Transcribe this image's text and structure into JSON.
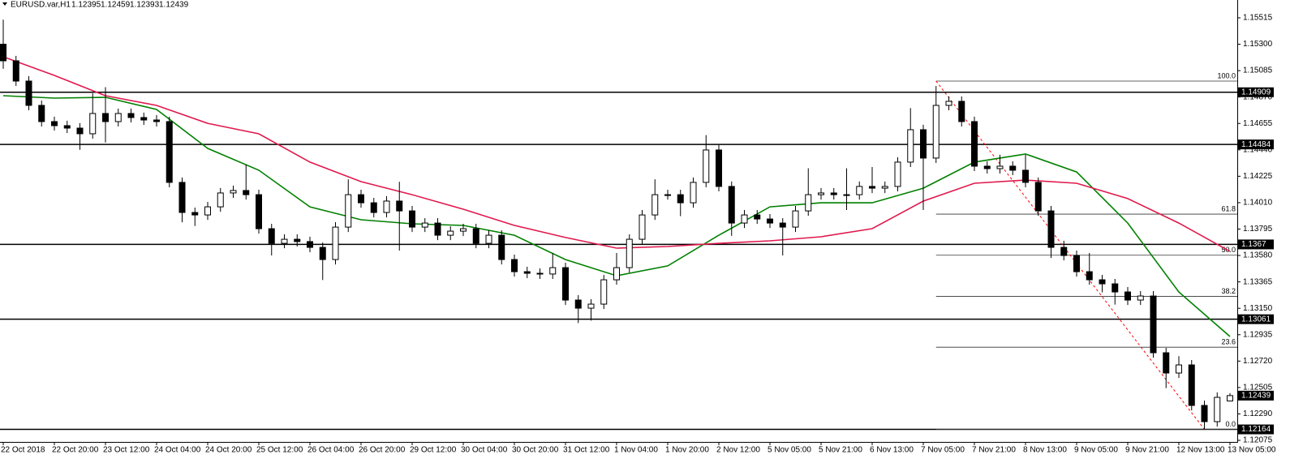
{
  "chart_data": {
    "type": "candlestick",
    "symbol": "EURUSD.var,H1",
    "ohlc": [
      1.12395,
      1.12459,
      1.12393,
      1.12439
    ],
    "categories": [
      "22 Oct 2018",
      null,
      null,
      null,
      "22 Oct 20:00",
      null,
      null,
      null,
      "23 Oct 12:00",
      null,
      null,
      null,
      "24 Oct 04:00",
      null,
      null,
      null,
      "24 Oct 20:00",
      null,
      null,
      null,
      "25 Oct 12:00",
      null,
      null,
      null,
      "26 Oct 04:00",
      null,
      null,
      null,
      "26 Oct 20:00",
      null,
      null,
      null,
      "29 Oct 12:00",
      null,
      null,
      null,
      "30 Oct 04:00",
      null,
      null,
      null,
      "30 Oct 20:00",
      null,
      null,
      null,
      "31 Oct 12:00",
      null,
      null,
      null,
      "1 Nov 04:00",
      null,
      null,
      null,
      "1 Nov 20:00",
      null,
      null,
      null,
      "2 Nov 12:00",
      null,
      null,
      null,
      "5 Nov 05:00",
      null,
      null,
      null,
      "5 Nov 21:00",
      null,
      null,
      null,
      "6 Nov 13:00",
      null,
      null,
      null,
      "7 Nov 05:00",
      null,
      null,
      null,
      "7 Nov 21:00",
      null,
      null,
      null,
      "8 Nov 13:00",
      null,
      null,
      null,
      "9 Nov 05:00",
      null,
      null,
      null,
      "9 Nov 21:00",
      null,
      null,
      null,
      "12 Nov 13:00",
      null,
      null,
      null,
      "13 Nov 05:00"
    ],
    "candles": {
      "open": [
        1.153,
        1.15165,
        1.15,
        1.14802,
        1.1467,
        1.14637,
        1.14617,
        1.14571,
        1.14736,
        1.1467,
        1.14736,
        1.14703,
        1.14683,
        1.1467,
        1.14175,
        1.1393,
        1.1391,
        1.13976,
        1.14089,
        1.14109,
        1.14075,
        1.13798,
        1.13679,
        1.13712,
        1.13693,
        1.13646,
        1.13547,
        1.13811,
        1.14075,
        1.14009,
        1.1393,
        1.14023,
        1.13943,
        1.13811,
        1.13844,
        1.13745,
        1.13778,
        1.13798,
        1.13679,
        1.13745,
        1.13547,
        1.13448,
        1.13435,
        1.13429,
        1.13481,
        1.13217,
        1.13151,
        1.13184,
        1.13382,
        1.13481,
        1.13712,
        1.1391,
        1.14075,
        1.14075,
        1.14009,
        1.14175,
        1.14439,
        1.14142,
        1.13844,
        1.1391,
        1.13877,
        1.13844,
        1.13811,
        1.13943,
        1.14075,
        1.14089,
        1.14075,
        1.14075,
        1.14142,
        1.14128,
        1.14142,
        1.1434,
        1.14604,
        1.14373,
        1.14802,
        1.14835,
        1.1467,
        1.14307,
        1.14287,
        1.14307,
        1.14274,
        1.14175,
        1.13943,
        1.13646,
        1.1358,
        1.13448,
        1.13382,
        1.13349,
        1.13283,
        1.13217,
        1.1325,
        1.12788,
        1.12623,
        1.12689,
        1.12359,
        1.12227,
        1.12395
      ],
      "high": [
        1.155,
        1.15205,
        1.1504,
        1.14842,
        1.1471,
        1.14677,
        1.14657,
        1.149,
        1.1495,
        1.14776,
        1.14776,
        1.14743,
        1.14723,
        1.1471,
        1.14215,
        1.1397,
        1.14016,
        1.14129,
        1.14149,
        1.1432,
        1.14115,
        1.13838,
        1.13752,
        1.13752,
        1.13733,
        1.13686,
        1.13851,
        1.142,
        1.14115,
        1.14049,
        1.14063,
        1.1418,
        1.13983,
        1.13884,
        1.13884,
        1.13818,
        1.13838,
        1.13838,
        1.13785,
        1.13785,
        1.13587,
        1.13488,
        1.13475,
        1.136,
        1.13521,
        1.13257,
        1.13224,
        1.13422,
        1.136,
        1.13752,
        1.1395,
        1.142,
        1.14115,
        1.14115,
        1.14215,
        1.1456,
        1.14479,
        1.14182,
        1.1395,
        1.1395,
        1.13917,
        1.13884,
        1.13983,
        1.1429,
        1.14129,
        1.14129,
        1.1429,
        1.14182,
        1.143,
        1.14182,
        1.1438,
        1.1478,
        1.14644,
        1.1496,
        1.14875,
        1.14875,
        1.1471,
        1.14347,
        1.144,
        1.14347,
        1.144,
        1.14215,
        1.13983,
        1.137,
        1.1362,
        1.136,
        1.13422,
        1.13389,
        1.13323,
        1.1329,
        1.1329,
        1.12828,
        1.1276,
        1.12729,
        1.12399,
        1.12465,
        1.12459
      ],
      "low": [
        1.151,
        1.1496,
        1.14762,
        1.1463,
        1.14597,
        1.14577,
        1.1444,
        1.14531,
        1.145,
        1.1463,
        1.14663,
        1.14643,
        1.1463,
        1.14135,
        1.1385,
        1.1382,
        1.1387,
        1.13936,
        1.14049,
        1.14035,
        1.13758,
        1.1358,
        1.13639,
        1.13653,
        1.13606,
        1.1338,
        1.13507,
        1.13771,
        1.13969,
        1.1389,
        1.1389,
        1.1362,
        1.13771,
        1.13771,
        1.13705,
        1.13705,
        1.13738,
        1.13639,
        1.13639,
        1.13507,
        1.13408,
        1.13395,
        1.13389,
        1.13389,
        1.13177,
        1.1303,
        1.1305,
        1.13144,
        1.13342,
        1.13441,
        1.13672,
        1.1387,
        1.14035,
        1.139,
        1.13969,
        1.14135,
        1.14102,
        1.1374,
        1.13804,
        1.13837,
        1.13804,
        1.1358,
        1.13771,
        1.13903,
        1.14035,
        1.14035,
        1.1395,
        1.14035,
        1.14088,
        1.14088,
        1.14102,
        1.143,
        1.1395,
        1.14333,
        1.14762,
        1.1463,
        1.14267,
        1.14247,
        1.14247,
        1.14234,
        1.14135,
        1.13903,
        1.1356,
        1.1354,
        1.13408,
        1.13342,
        1.1328,
        1.1318,
        1.13177,
        1.13177,
        1.12748,
        1.125,
        1.12583,
        1.12319,
        1.12164,
        1.12187,
        1.12393
      ],
      "close": [
        1.15165,
        1.15,
        1.14802,
        1.1467,
        1.14637,
        1.14617,
        1.14571,
        1.14736,
        1.1467,
        1.14736,
        1.14703,
        1.14683,
        1.1467,
        1.14175,
        1.1393,
        1.1391,
        1.13976,
        1.14089,
        1.14109,
        1.14075,
        1.13798,
        1.13679,
        1.13712,
        1.13693,
        1.13646,
        1.13547,
        1.13811,
        1.14075,
        1.14009,
        1.1393,
        1.14023,
        1.13943,
        1.13811,
        1.13844,
        1.13745,
        1.13778,
        1.13798,
        1.13679,
        1.13745,
        1.13547,
        1.13448,
        1.13435,
        1.13429,
        1.13481,
        1.13217,
        1.13151,
        1.13184,
        1.13382,
        1.13481,
        1.13712,
        1.1391,
        1.14075,
        1.14075,
        1.14009,
        1.14175,
        1.14439,
        1.14142,
        1.13844,
        1.1391,
        1.13877,
        1.13844,
        1.13811,
        1.13943,
        1.14075,
        1.14089,
        1.14075,
        1.14075,
        1.14142,
        1.14128,
        1.14142,
        1.1434,
        1.14604,
        1.14373,
        1.14802,
        1.14835,
        1.1467,
        1.14307,
        1.14287,
        1.14307,
        1.14274,
        1.14175,
        1.13943,
        1.13646,
        1.1358,
        1.13448,
        1.13382,
        1.13349,
        1.13283,
        1.13217,
        1.1325,
        1.12788,
        1.12623,
        1.12689,
        1.12359,
        1.12227,
        1.12425,
        1.12439
      ]
    },
    "series": [
      {
        "color": "#008000",
        "x": [
          0,
          4,
          8,
          12,
          16,
          20,
          24,
          28,
          32,
          36,
          40,
          44,
          48,
          52,
          56,
          60,
          64,
          68,
          72,
          76,
          80,
          84,
          88,
          92,
          96
        ],
        "values": [
          1.14881,
          1.14861,
          1.14868,
          1.14769,
          1.14452,
          1.14274,
          1.13976,
          1.13871,
          1.13838,
          1.13825,
          1.13745,
          1.13547,
          1.13415,
          1.13495,
          1.13745,
          1.13976,
          1.14009,
          1.14009,
          1.14128,
          1.1434,
          1.14406,
          1.1426,
          1.13844,
          1.13283,
          1.1292
        ]
      },
      {
        "color": "#e0194d",
        "x": [
          0,
          4,
          8,
          12,
          16,
          20,
          24,
          28,
          32,
          36,
          40,
          44,
          48,
          52,
          56,
          60,
          64,
          68,
          72,
          76,
          80,
          84,
          88,
          92,
          96
        ],
        "values": [
          1.15198,
          1.15046,
          1.14881,
          1.14802,
          1.14656,
          1.14571,
          1.1434,
          1.14181,
          1.14075,
          1.13957,
          1.13825,
          1.13726,
          1.1364,
          1.13653,
          1.13679,
          1.13699,
          1.13732,
          1.13798,
          1.14023,
          1.14168,
          1.14194,
          1.14168,
          1.14043,
          1.13844,
          1.13613
        ]
      }
    ],
    "levels": [
      1.14909,
      1.14484,
      1.1367,
      1.13061,
      1.12164
    ],
    "last_price": 1.12439,
    "fibonacci": {
      "start": 73,
      "high": 1.15,
      "low": 1.12164,
      "levels": [
        {
          "value": 100,
          "label": "100.0"
        },
        61.8,
        {
          "value": 50,
          "label": "50.0"
        },
        38.2,
        23.6,
        {
          "value": 0,
          "label": "0.0"
        }
      ]
    },
    "trendline": {
      "from": [
        73,
        1.15
      ],
      "to": [
        94,
        1.12164
      ],
      "color": "#ff0000"
    },
    "ylim": [
      1.12062,
      1.1566
    ],
    "yticks": [
      1.15515,
      {
        "value": 1.153,
        "label": "1.15300"
      },
      1.15085,
      {
        "value": 1.1487,
        "label": "1.14870"
      },
      1.14655,
      {
        "value": 1.1444,
        "label": "1.14440"
      },
      1.14225,
      {
        "value": 1.1401,
        "label": "1.14010"
      },
      1.13795,
      {
        "value": 1.1358,
        "label": "1.13580"
      },
      1.13365,
      {
        "value": 1.1315,
        "label": "1.13150"
      },
      1.12935,
      {
        "value": 1.1272,
        "label": "1.12720"
      },
      1.12505,
      {
        "value": 1.1229,
        "label": "1.12290"
      },
      1.12075
    ]
  }
}
